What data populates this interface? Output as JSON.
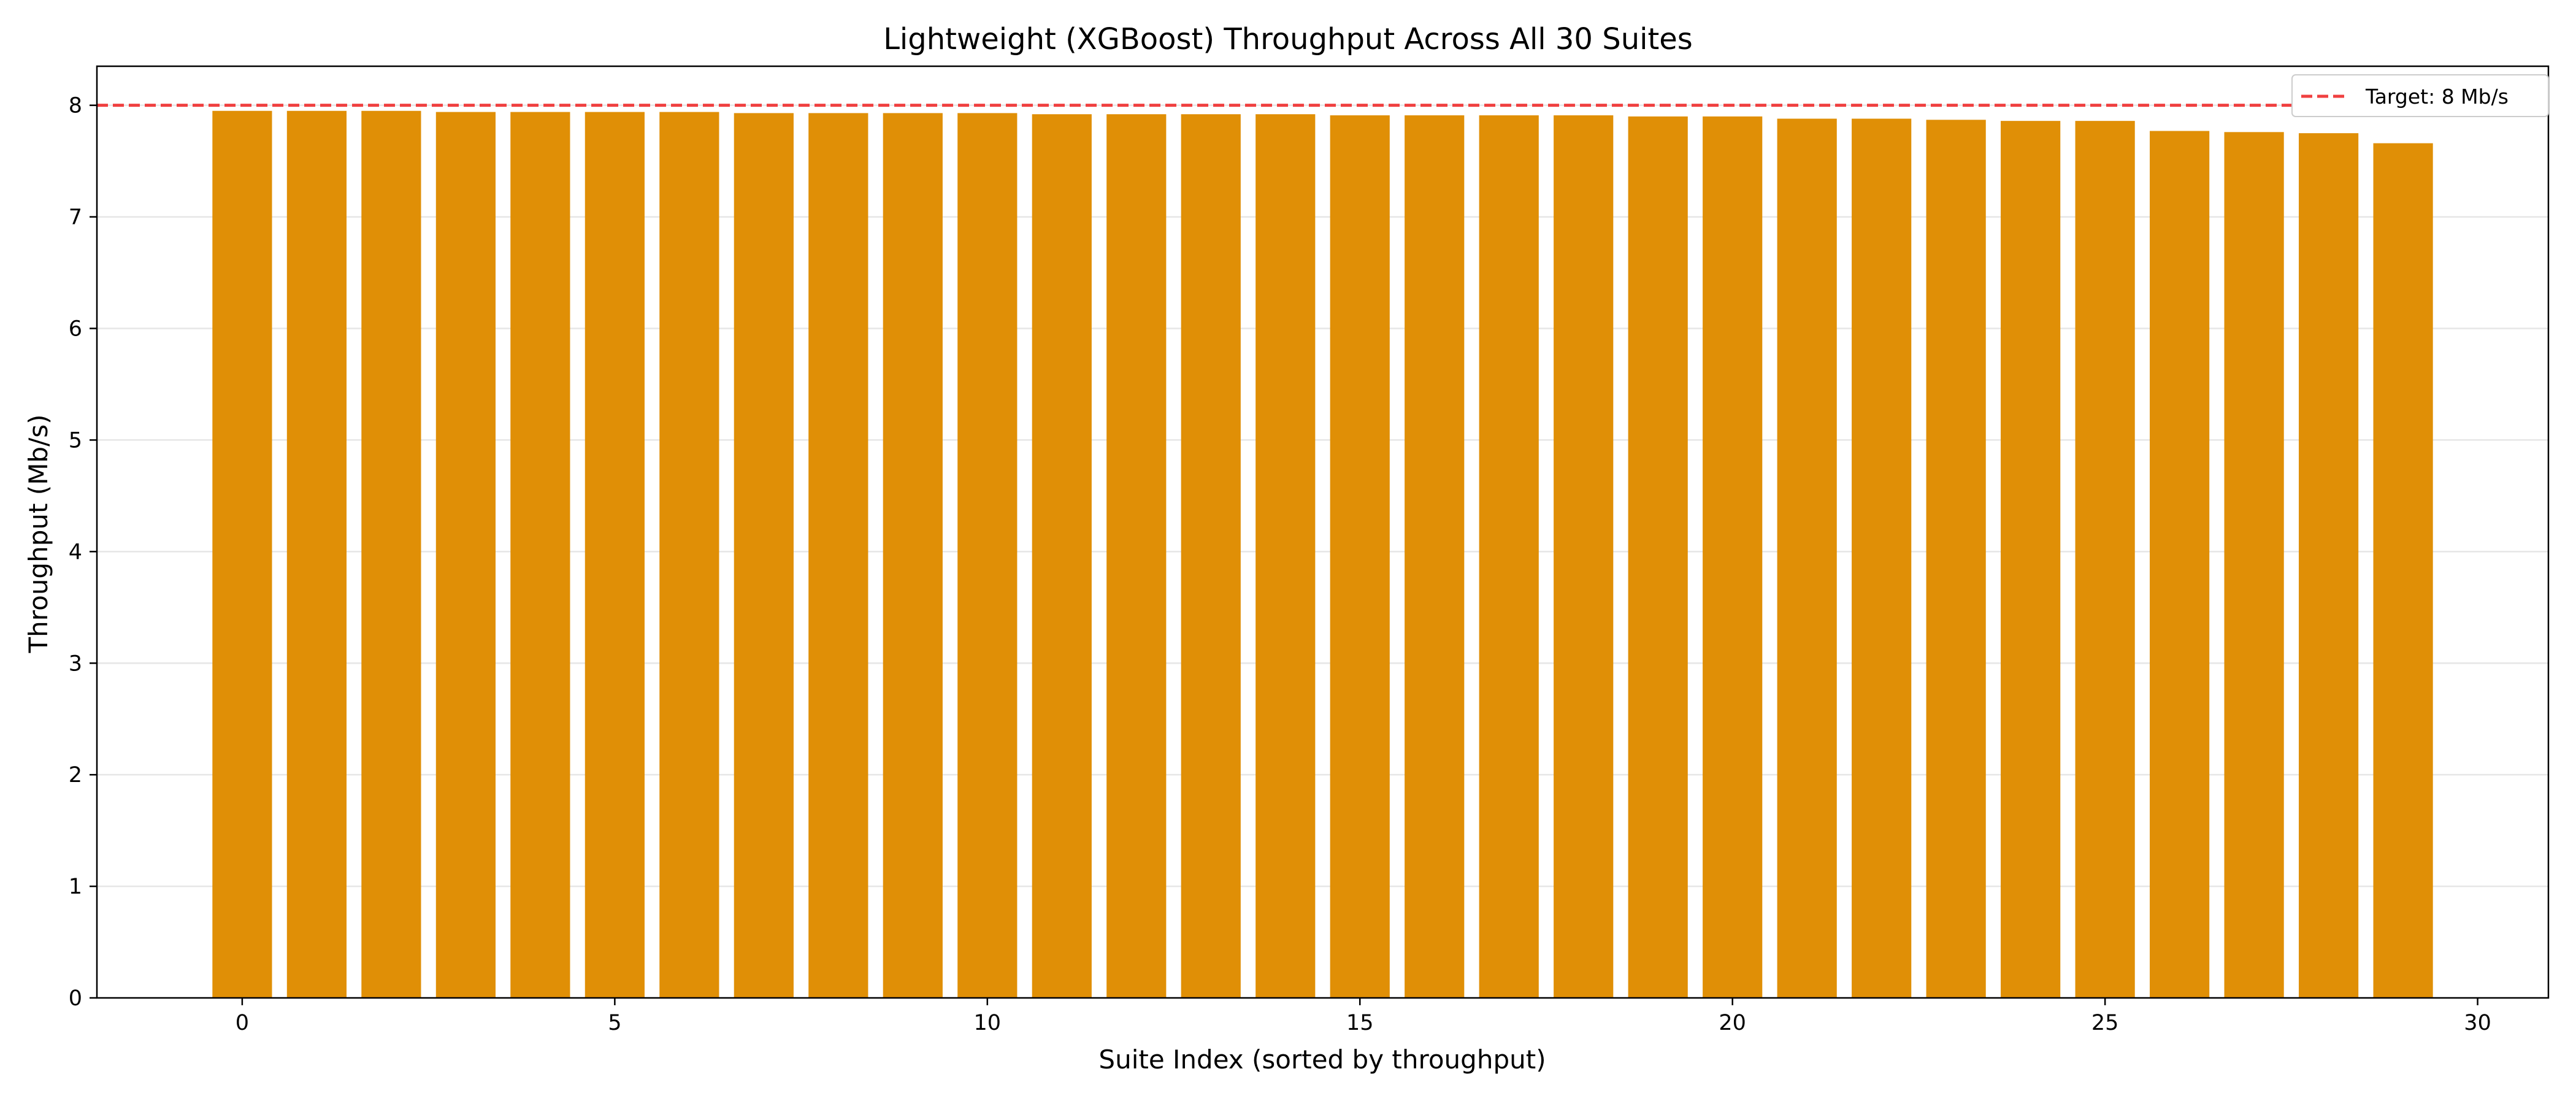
{
  "chart_data": {
    "type": "bar",
    "title": "Lightweight (XGBoost) Throughput Across All 30 Suites",
    "xlabel": "Suite Index (sorted by throughput)",
    "ylabel": "Throughput (Mb/s)",
    "x": [
      0,
      1,
      2,
      3,
      4,
      5,
      6,
      7,
      8,
      9,
      10,
      11,
      12,
      13,
      14,
      15,
      16,
      17,
      18,
      19,
      20,
      21,
      22,
      23,
      24,
      25,
      26,
      27,
      28,
      29
    ],
    "values": [
      7.95,
      7.95,
      7.95,
      7.94,
      7.94,
      7.94,
      7.94,
      7.93,
      7.93,
      7.93,
      7.93,
      7.92,
      7.92,
      7.92,
      7.92,
      7.91,
      7.91,
      7.91,
      7.91,
      7.9,
      7.9,
      7.88,
      7.88,
      7.87,
      7.86,
      7.86,
      7.77,
      7.76,
      7.75,
      7.66
    ],
    "xlim": [
      -1.95,
      30.95
    ],
    "ylim": [
      0,
      8.35
    ],
    "xticks": [
      0,
      5,
      10,
      15,
      20,
      25,
      30
    ],
    "yticks": [
      0,
      1,
      2,
      3,
      4,
      5,
      6,
      7,
      8
    ],
    "grid": "horizontal",
    "bar_color": "#E08F06",
    "reference_line": {
      "value": 8,
      "label": "Target: 8 Mb/s",
      "color": "#F04040",
      "style": "dashed"
    },
    "legend_position": "top-right"
  }
}
